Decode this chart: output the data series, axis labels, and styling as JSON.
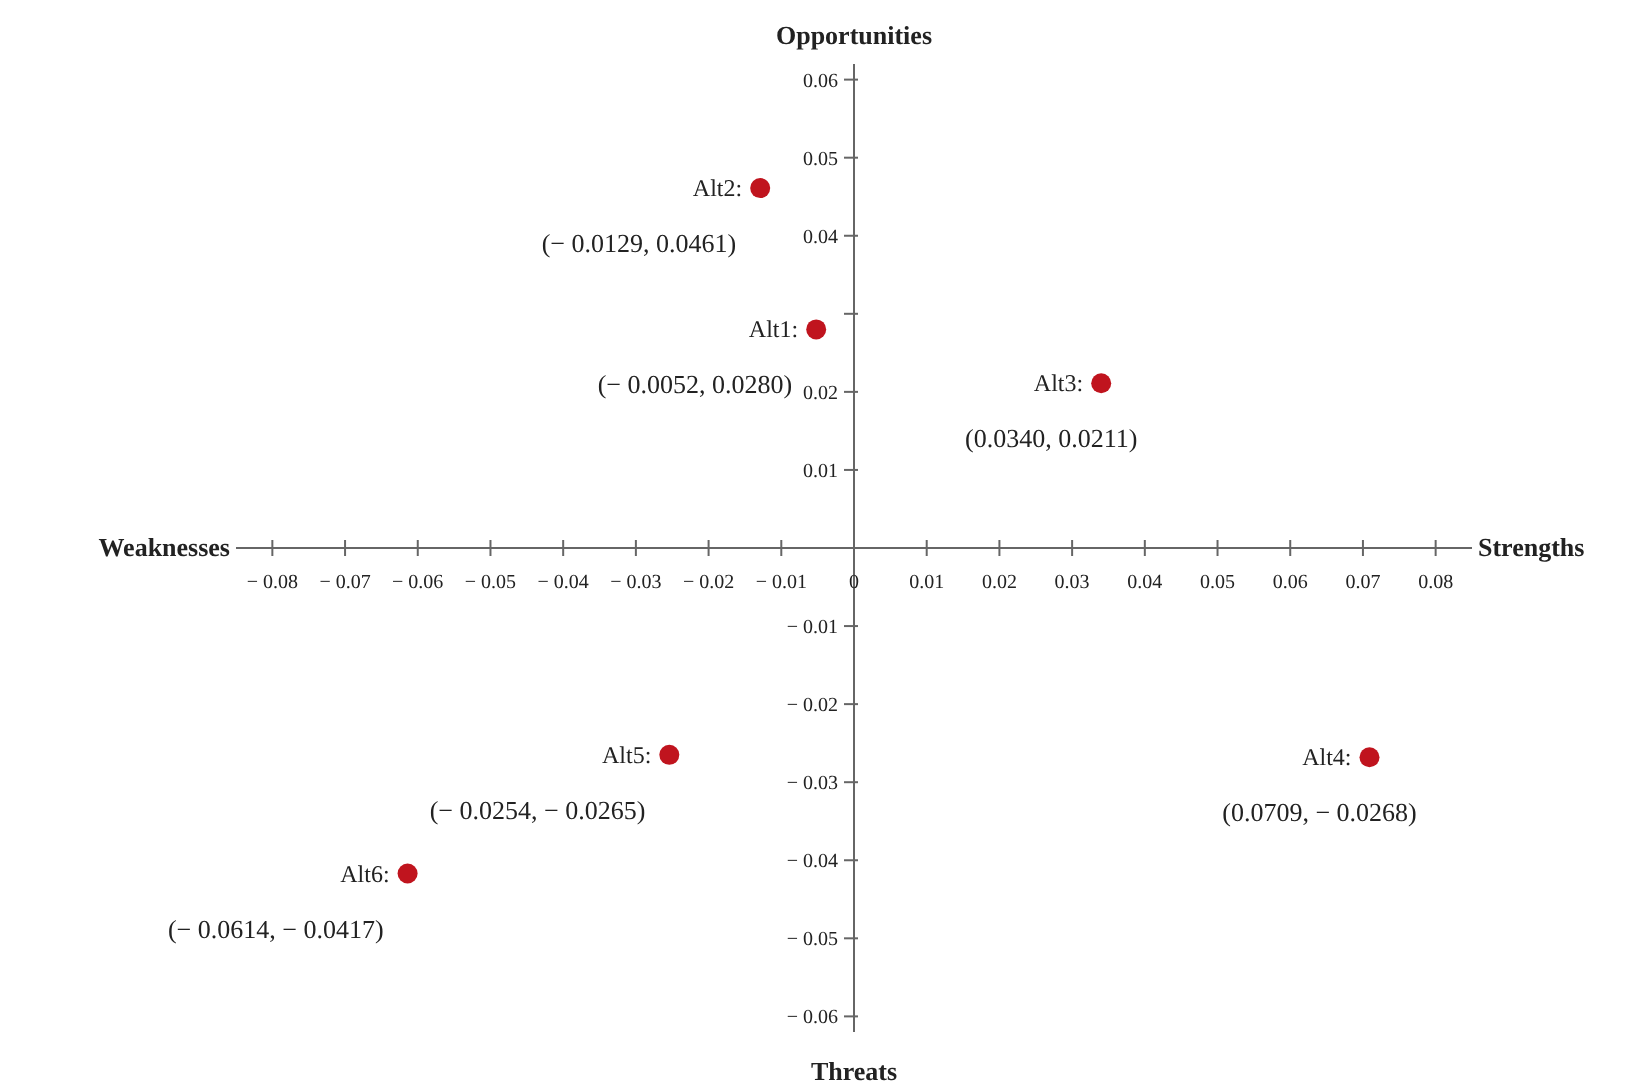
{
  "chart_data": {
    "type": "scatter",
    "xlabel": "Strengths",
    "ylabel": "Opportunities",
    "x": [
      -0.0052,
      -0.0129,
      0.034,
      0.0709,
      -0.0254,
      -0.0614
    ],
    "series": [
      {
        "color": "#c0141e",
        "values": [
          0.028,
          0.0461,
          0.0211,
          -0.0268,
          -0.0265,
          -0.0417
        ],
        "value_labels": [
          "(− 0.0052, 0.0280)",
          "(− 0.0129, 0.0461)",
          "(0.0340, 0.0211)",
          "(0.0709, − 0.0268)",
          "(− 0.0254, − 0.0265)",
          "(− 0.0614, − 0.0417)"
        ]
      }
    ],
    "marker": "circle",
    "grid": false,
    "xlim": [
      -0.085,
      0.085
    ],
    "ylim": [
      -0.062,
      0.062
    ],
    "xticks": [
      {
        "value": -0.08,
        "label": "− 0.08"
      },
      {
        "value": -0.07,
        "label": "− 0.07"
      },
      {
        "value": -0.06,
        "label": "− 0.06"
      },
      {
        "value": -0.05,
        "label": "− 0.05"
      },
      {
        "value": -0.04,
        "label": "− 0.04"
      },
      {
        "value": -0.03,
        "label": "− 0.03"
      },
      {
        "value": -0.02,
        "label": "− 0.02"
      },
      {
        "value": -0.01,
        "label": "− 0.01"
      },
      0,
      0.01,
      0.02,
      0.03,
      0.04,
      0.05,
      0.06,
      0.07,
      0.08
    ],
    "yticks": [
      {
        "value": -0.06,
        "label": "− 0.06"
      },
      {
        "value": -0.05,
        "label": "− 0.05"
      },
      {
        "value": -0.04,
        "label": "− 0.04"
      },
      {
        "value": -0.03,
        "label": "− 0.03"
      },
      {
        "value": -0.02,
        "label": "− 0.02"
      },
      {
        "value": -0.01,
        "label": "− 0.01"
      },
      0.01,
      0.02,
      {
        "value": 0.03,
        "label": null
      },
      0.04,
      0.05,
      0.06
    ],
    "annotations": [
      {
        "text": "Alt1:",
        "x": -0.0052,
        "y": 0.028
      },
      {
        "text": "Alt2:",
        "x": -0.0129,
        "y": 0.0461
      },
      {
        "text": "Alt3:",
        "x": 0.034,
        "y": 0.0211
      },
      {
        "text": "Alt4:",
        "x": 0.0709,
        "y": -0.0268
      },
      {
        "text": "Alt5:",
        "x": -0.0254,
        "y": -0.0265
      },
      {
        "text": "Alt6:",
        "x": -0.0614,
        "y": -0.0417
      },
      "Weaknesses",
      "Threats"
    ]
  }
}
